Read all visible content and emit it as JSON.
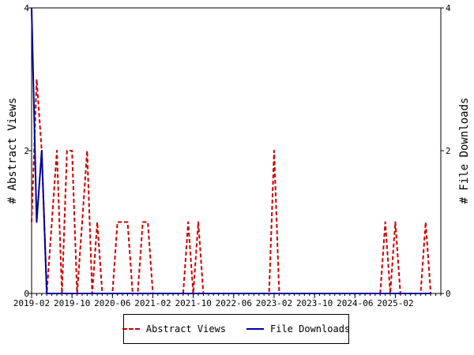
{
  "chart_data": {
    "type": "line",
    "title": "",
    "ylabel_left": "# Abstract Views",
    "ylabel_right": "# File Downloads",
    "xlabel": "",
    "x_ticks": [
      "2019-02",
      "2019-10",
      "2020-06",
      "2021-02",
      "2021-10",
      "2022-06",
      "2023-02",
      "2023-10",
      "2024-06",
      "2025-02"
    ],
    "x_start": "2019-02",
    "x_end": "2025-11",
    "yticks_left": [
      0,
      2,
      4
    ],
    "yticks_right": [
      0,
      2,
      4
    ],
    "ylim_left": [
      0,
      4
    ],
    "ylim_right": [
      0,
      4
    ],
    "grid": false,
    "legend_position": "bottom",
    "series": [
      {
        "name": "Abstract Views",
        "axis": "left",
        "color": "#cc0000",
        "style": "dashed",
        "points": [
          [
            "2019-02",
            1
          ],
          [
            "2019-03",
            3
          ],
          [
            "2019-04",
            2
          ],
          [
            "2019-05",
            0
          ],
          [
            "2019-06",
            1
          ],
          [
            "2019-07",
            2
          ],
          [
            "2019-08",
            0
          ],
          [
            "2019-09",
            2
          ],
          [
            "2019-10",
            2
          ],
          [
            "2019-11",
            0
          ],
          [
            "2019-12",
            1
          ],
          [
            "2020-01",
            2
          ],
          [
            "2020-02",
            0
          ],
          [
            "2020-03",
            1
          ],
          [
            "2020-04",
            0
          ],
          [
            "2020-05",
            0
          ],
          [
            "2020-06",
            0
          ],
          [
            "2020-07",
            1
          ],
          [
            "2020-08",
            1
          ],
          [
            "2020-09",
            1
          ],
          [
            "2020-10",
            0
          ],
          [
            "2020-11",
            0
          ],
          [
            "2020-12",
            1
          ],
          [
            "2021-01",
            1
          ],
          [
            "2021-02",
            0
          ],
          [
            "2021-03",
            0
          ],
          [
            "2021-04",
            0
          ],
          [
            "2021-05",
            0
          ],
          [
            "2021-06",
            0
          ],
          [
            "2021-07",
            0
          ],
          [
            "2021-08",
            0
          ],
          [
            "2021-09",
            1
          ],
          [
            "2021-10",
            0
          ],
          [
            "2021-11",
            1
          ],
          [
            "2021-12",
            0
          ],
          [
            "2022-01",
            0
          ],
          [
            "2022-02",
            0
          ],
          [
            "2022-03",
            0
          ],
          [
            "2022-04",
            0
          ],
          [
            "2022-05",
            0
          ],
          [
            "2022-06",
            0
          ],
          [
            "2022-07",
            0
          ],
          [
            "2022-08",
            0
          ],
          [
            "2022-09",
            0
          ],
          [
            "2022-10",
            0
          ],
          [
            "2022-11",
            0
          ],
          [
            "2022-12",
            0
          ],
          [
            "2023-01",
            0
          ],
          [
            "2023-02",
            2
          ],
          [
            "2023-03",
            0
          ],
          [
            "2023-04",
            0
          ],
          [
            "2023-05",
            0
          ],
          [
            "2023-06",
            0
          ],
          [
            "2023-07",
            0
          ],
          [
            "2023-08",
            0
          ],
          [
            "2023-09",
            0
          ],
          [
            "2023-10",
            0
          ],
          [
            "2023-11",
            0
          ],
          [
            "2023-12",
            0
          ],
          [
            "2024-01",
            0
          ],
          [
            "2024-02",
            0
          ],
          [
            "2024-03",
            0
          ],
          [
            "2024-04",
            0
          ],
          [
            "2024-05",
            0
          ],
          [
            "2024-06",
            0
          ],
          [
            "2024-07",
            0
          ],
          [
            "2024-08",
            0
          ],
          [
            "2024-09",
            0
          ],
          [
            "2024-10",
            0
          ],
          [
            "2024-11",
            0
          ],
          [
            "2024-12",
            1
          ],
          [
            "2025-01",
            0
          ],
          [
            "2025-02",
            1
          ],
          [
            "2025-03",
            0
          ],
          [
            "2025-04",
            0
          ],
          [
            "2025-05",
            0
          ],
          [
            "2025-06",
            0
          ],
          [
            "2025-07",
            0
          ],
          [
            "2025-08",
            1
          ],
          [
            "2025-09",
            0
          ]
        ]
      },
      {
        "name": "File Downloads",
        "axis": "right",
        "color": "#000099",
        "style": "solid",
        "points": [
          [
            "2019-02",
            4
          ],
          [
            "2019-03",
            1
          ],
          [
            "2019-04",
            2
          ],
          [
            "2019-05",
            0
          ],
          [
            "2019-06",
            0
          ],
          [
            "2019-07",
            0
          ],
          [
            "2020-06",
            0
          ],
          [
            "2021-02",
            0
          ],
          [
            "2021-10",
            0
          ],
          [
            "2022-06",
            0
          ],
          [
            "2023-02",
            0
          ],
          [
            "2023-10",
            0
          ],
          [
            "2024-06",
            0
          ],
          [
            "2025-02",
            0
          ],
          [
            "2025-09",
            0
          ]
        ]
      }
    ]
  }
}
